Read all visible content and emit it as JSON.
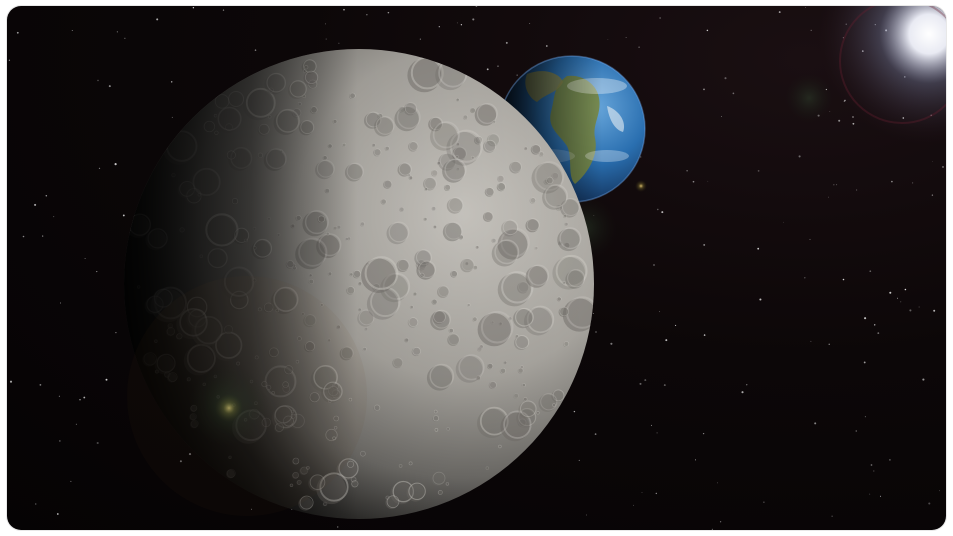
{
  "scene": {
    "subject": "",
    "colors": {
      "space": "#050304",
      "moon_light": "#b9b6b0",
      "moon_mid": "#8f8c87",
      "moon_dark": "#2b2a28",
      "earth_ocean": "#2a6fb0",
      "earth_land": "#6f7a3c",
      "sun": "#ffffff",
      "flare": "#d9a64a"
    }
  }
}
